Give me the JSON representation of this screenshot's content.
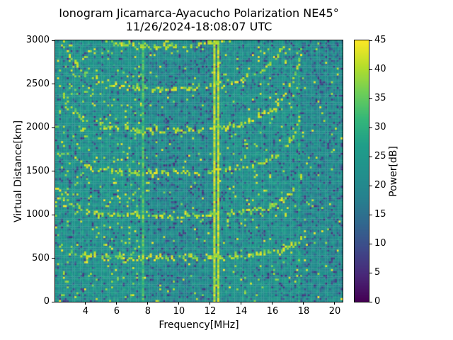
{
  "title": {
    "line1": "Ionogram Jicamarca-Ayacucho Polarization NE45°",
    "line2": "11/26/2024-18:08:07 UTC"
  },
  "chart_data": {
    "type": "heatmap",
    "title": "Ionogram Jicamarca-Ayacucho Polarization NE45°",
    "subtitle": "11/26/2024-18:08:07 UTC",
    "xlabel": "Frequency[MHz]",
    "ylabel": "Virtual Distance[km]",
    "colorbar_label": "Power[dB]",
    "xlim": [
      2.05,
      20.5
    ],
    "ylim": [
      0,
      3000
    ],
    "clim": [
      0,
      45
    ],
    "xticks": [
      4,
      6,
      8,
      10,
      12,
      14,
      16,
      18,
      20
    ],
    "yticks": [
      0,
      500,
      1000,
      1500,
      2000,
      2500,
      3000
    ],
    "cticks": [
      0,
      5,
      10,
      15,
      20,
      25,
      30,
      35,
      40,
      45
    ],
    "colormap": "viridis",
    "viridis_stops": [
      "#440154",
      "#482878",
      "#3e4989",
      "#31688e",
      "#26828e",
      "#21918c",
      "#1f9e89",
      "#35b779",
      "#6ece58",
      "#b5de2b",
      "#fde725"
    ],
    "grid": {
      "nf": 149,
      "nh": 135,
      "seed": 1337
    },
    "noise": {
      "sd": 3.6,
      "dark_p": 0.1,
      "dark_range": [
        5,
        16
      ],
      "bright_range": [
        36,
        45
      ],
      "regions": [
        {
          "f_max": 7.6,
          "mean": 23.0,
          "bright_p": 0.05,
          "dark_p": 0.08
        },
        {
          "f_max": 12.6,
          "mean": 20.8,
          "bright_p": 0.018,
          "dark_p": 0.13
        },
        {
          "f_max": 17.6,
          "mean": 22.5,
          "bright_p": 0.03,
          "dark_p": 0.1
        },
        {
          "f_max": 21.0,
          "mean": 20.8,
          "bright_p": 0.018,
          "dark_p": 0.14
        }
      ]
    },
    "interference_lines_mhz": [
      {
        "f": 7.65,
        "power": 33,
        "duty": 1.0
      },
      {
        "f": 12.3,
        "power": 41,
        "duty": 1.0
      },
      {
        "f": 12.5,
        "power": 41,
        "duty": 1.0
      },
      {
        "f": 17.75,
        "power": 29,
        "duty": 0.6
      }
    ],
    "echo_trace": {
      "hops": 7,
      "flat_km": 430,
      "low_coef": 200,
      "low_pole": 1.2,
      "high_coef": 330,
      "high_pole": 19.0,
      "f_min": 2.3,
      "f_max": 17.85,
      "dash_p": 0.6,
      "low_dash_p": 0.38,
      "power_range": [
        36,
        45
      ],
      "jitter_km": 30,
      "first_hop_km_at_10mhz": 489
    }
  },
  "layout_text": {
    "degree_note": "NE45°"
  }
}
